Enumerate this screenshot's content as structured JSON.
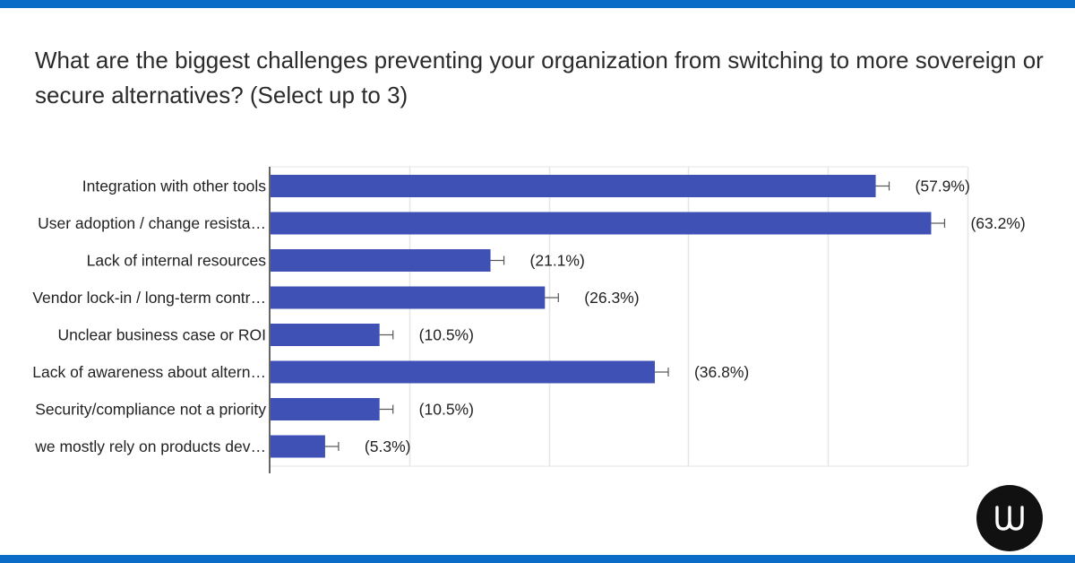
{
  "colors": {
    "accent_bar": "#0a6cc7",
    "bar": "#3f51b5",
    "gridline": "#e6e6e6",
    "axis": "#333333",
    "logo_bg": "#111111",
    "logo_fg": "#ffffff"
  },
  "logo": {
    "icon": "w-logo-icon"
  },
  "chart_data": {
    "type": "bar",
    "orientation": "horizontal",
    "title": "What are the biggest challenges preventing your organization from switching to more sovereign or secure alternatives? (Select up to 3)",
    "categories": [
      "Integration with other tools",
      "User adoption / change resista…",
      "Lack of internal resources",
      "Vendor lock-in / long-term contr…",
      "Unclear business case or ROI",
      "Lack of awareness about altern…",
      "Security/compliance not a priority",
      "we mostly rely on products dev…"
    ],
    "values": [
      57.9,
      63.2,
      21.1,
      26.3,
      10.5,
      36.8,
      10.5,
      5.3
    ],
    "value_labels": [
      "(57.9%)",
      "(63.2%)",
      "(21.1%)",
      "(26.3%)",
      "(10.5%)",
      "(36.8%)",
      "(10.5%)",
      "(5.3%)"
    ],
    "xlim": [
      0,
      66.67
    ],
    "grid": true,
    "grid_step": 13.33,
    "legend": "none"
  }
}
